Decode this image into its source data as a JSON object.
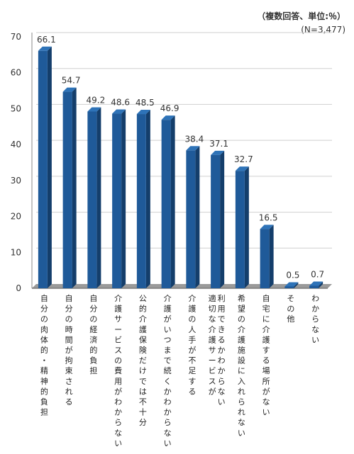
{
  "notes": {
    "unit": "（複数回答、単位:％）",
    "n": "(N=3,477)"
  },
  "colors": {
    "bar_front": "#1f5a99",
    "bar_side": "#143e6b",
    "bar_top": "#2e73b8",
    "floor": "#9a9a9a",
    "grid": "#cfcfcf"
  },
  "chart_data": {
    "type": "bar",
    "categories": [
      "自分の肉体的・精神的負担",
      "自分の時間が拘束される",
      "自分の経済的負担",
      "介護サービスの費用がわからない",
      "公的介護保険だけでは不十分",
      "介護がいつまで続くかわからない",
      "介護の人手が不足する",
      "適切な介護サービスが|利用できるかわからない",
      "希望の介護施設に入れられない",
      "自宅に介護する場所がない",
      "その他",
      "わからない"
    ],
    "values": [
      66.1,
      54.7,
      49.2,
      48.6,
      48.5,
      46.9,
      38.4,
      37.1,
      32.7,
      16.5,
      0.5,
      0.7
    ],
    "value_labels": [
      "66.1",
      "54.7",
      "49.2",
      "48.6",
      "48.5",
      "46.9",
      "38.4",
      "37.1",
      "32.7",
      "16.5",
      "0.5",
      "0.7"
    ],
    "yticks": [
      "0",
      "10",
      "20",
      "30",
      "40",
      "50",
      "60",
      "70"
    ],
    "ylim": [
      0,
      70
    ],
    "grid": true
  }
}
